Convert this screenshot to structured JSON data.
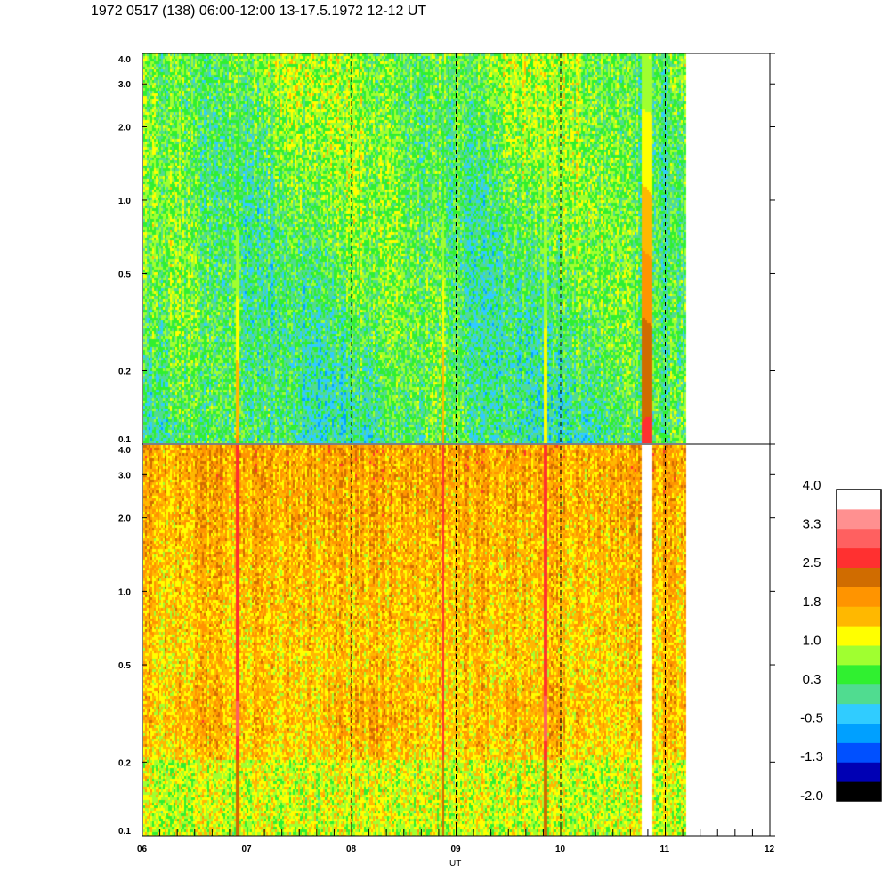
{
  "chart_data": {
    "type": "heatmap",
    "title": "1972 0517 (138) 06:00-12:00 13-17.5.1972  12-12 UT",
    "xlabel": "UT",
    "x_ticks": [
      "06",
      "07",
      "08",
      "09",
      "10",
      "11",
      "12"
    ],
    "xlim": [
      6,
      12
    ],
    "data_end_ut": 11.2,
    "dashed_hour_lines": [
      7,
      8,
      9,
      10,
      11
    ],
    "panels": [
      {
        "name": "upper",
        "ylim": [
          0.1,
          4.0
        ],
        "yscale": "log",
        "y_ticks": [
          "0.1",
          "0.2",
          "0.5",
          "1.0",
          "2.0",
          "3.0",
          "4.0"
        ],
        "typical_level": "-0.5 to 1.0"
      },
      {
        "name": "lower",
        "ylim": [
          0.1,
          4.0
        ],
        "yscale": "log",
        "y_ticks": [
          "0.1",
          "0.2",
          "0.5",
          "1.0",
          "2.0",
          "3.0",
          "4.0"
        ],
        "typical_level": "1.0 to 2.2"
      }
    ],
    "events_ut": [
      6.9,
      8.87,
      9.85,
      10.82
    ],
    "colorbar": {
      "range": [
        -2.0,
        4.0
      ],
      "labels": [
        "4.0",
        "3.3",
        "2.5",
        "1.8",
        "1.0",
        "0.3",
        "-0.5",
        "-1.3",
        "-2.0"
      ],
      "colors": [
        "#000000",
        "#0000b4",
        "#0050ff",
        "#00a0ff",
        "#30ccff",
        "#50dc90",
        "#30f030",
        "#a0ff30",
        "#ffff00",
        "#ffb800",
        "#ff9400",
        "#d06c00",
        "#ff3030",
        "#ff6060",
        "#ff9090",
        "#ffffff"
      ]
    }
  }
}
